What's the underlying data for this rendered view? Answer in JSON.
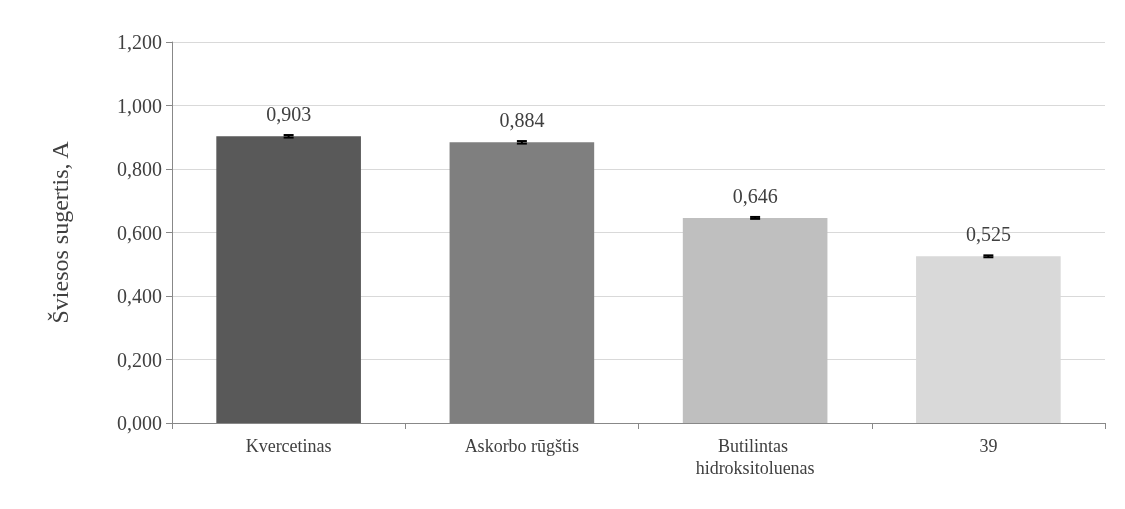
{
  "chart_data": {
    "type": "bar",
    "ylabel": "Šviesos sugertis, A",
    "categories": [
      "Kvercetinas",
      "Askorbo rūgštis",
      "Butilintas hidroksitoluenas",
      "39"
    ],
    "values": [
      0.903,
      0.884,
      0.646,
      0.525
    ],
    "colors": [
      "#595959",
      "#7f7f7f",
      "#bfbfbf",
      "#d9d9d9"
    ],
    "errors": [
      0.004,
      0.004,
      0.003,
      0.003
    ],
    "value_labels": [
      "0,903",
      "0,884",
      "0,646",
      "0,525"
    ],
    "ylim": [
      0,
      1.2
    ],
    "yticks": [
      {
        "value": 0,
        "label": "0,000"
      },
      {
        "value": 0.2,
        "label": "0,200"
      },
      {
        "value": 0.4,
        "label": "0,400"
      },
      {
        "value": 0.6,
        "label": "0,600"
      },
      {
        "value": 0.8,
        "label": "0,800"
      },
      {
        "value": 1,
        "label": "1,000"
      },
      {
        "value": 1.2,
        "label": "1,200"
      }
    ],
    "grid": "y"
  }
}
